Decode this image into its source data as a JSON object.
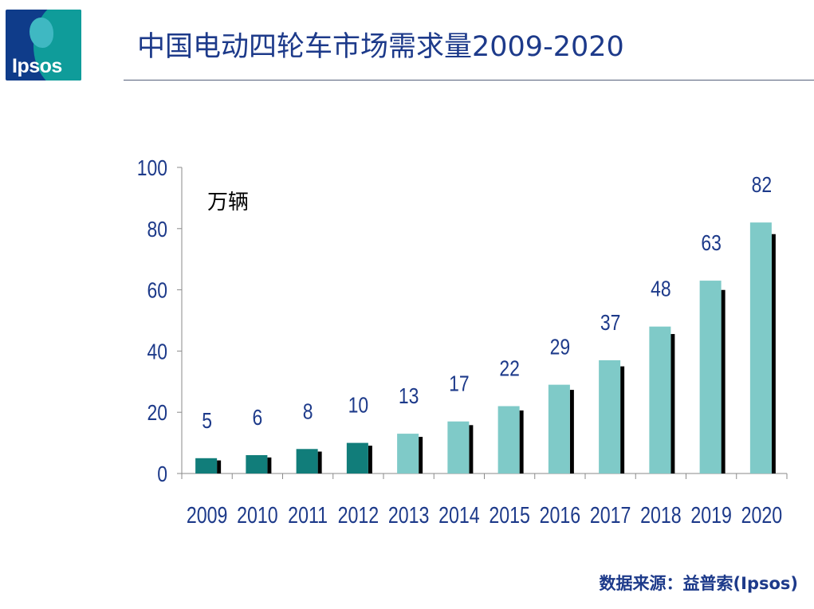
{
  "logo": {
    "text": "Ipsos"
  },
  "title": "中国电动四轮车市场需求量2009-2020",
  "source": "数据来源：益普索(Ipsos)",
  "colors": {
    "title": "#1d3a8a",
    "bar_dark": "#117d7a",
    "bar_light": "#7fcac8",
    "shadow": "#000000",
    "axis_text": "#1d3a8a"
  },
  "chart_data": {
    "type": "bar",
    "unit_label": "万辆",
    "categories": [
      "2009",
      "2010",
      "2011",
      "2012",
      "2013",
      "2014",
      "2015",
      "2016",
      "2017",
      "2018",
      "2019",
      "2020"
    ],
    "values": [
      5,
      6,
      8,
      10,
      13,
      17,
      22,
      29,
      37,
      48,
      63,
      82
    ],
    "yticks": [
      0,
      20,
      40,
      60,
      80,
      100
    ],
    "ylim": [
      0,
      100
    ],
    "grid": false,
    "legend": "none"
  }
}
